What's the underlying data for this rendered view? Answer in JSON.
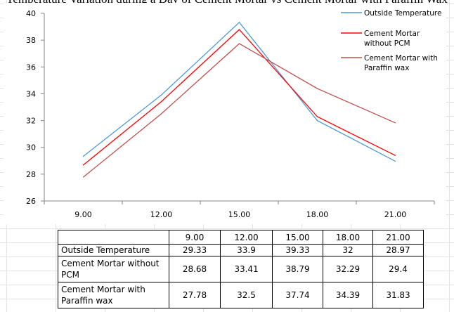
{
  "page": {
    "partial_title": "Temperature Variation during a Day of Cement Mortar vs Cement Mortar with Paraffin Wax"
  },
  "chart_data": {
    "type": "line",
    "x": [
      "9.00",
      "12.00",
      "15.00",
      "18.00",
      "21.00"
    ],
    "series": [
      {
        "name": "Outside Temperature",
        "values": [
          29.33,
          33.9,
          39.33,
          32,
          28.97
        ],
        "color": "#4a9ad6"
      },
      {
        "name": "Cement Mortar without PCM",
        "values": [
          28.68,
          33.41,
          38.79,
          32.29,
          29.4
        ],
        "color": "#ff0000"
      },
      {
        "name": "Cement Mortar with Paraffin wax",
        "values": [
          27.78,
          32.5,
          37.74,
          34.39,
          31.83
        ],
        "color": "#c0504d"
      }
    ],
    "ylim": [
      26,
      40
    ],
    "yticks": [
      "26",
      "28",
      "30",
      "32",
      "34",
      "36",
      "38",
      "40"
    ],
    "legend": {
      "placement": "top-right",
      "entries": [
        [
          "Outside Temperature"
        ],
        [
          "Cement Mortar",
          "without PCM"
        ],
        [
          "Cement Mortar with",
          "Paraffin wax"
        ]
      ]
    },
    "grid": false
  },
  "table": {
    "header": [
      "",
      "9.00",
      "12.00",
      "15.00",
      "18.00",
      "21.00"
    ],
    "rows": [
      {
        "label": [
          "Outside Temperature"
        ],
        "values": [
          "29.33",
          "33.9",
          "39.33",
          "32",
          "28.97"
        ]
      },
      {
        "label": [
          "Cement Mortar without",
          "PCM"
        ],
        "values": [
          "28.68",
          "33.41",
          "38.79",
          "32.29",
          "29.4"
        ]
      },
      {
        "label": [
          "Cement Mortar with",
          "Paraffin wax"
        ],
        "values": [
          "27.78",
          "32.5",
          "37.74",
          "34.39",
          "31.83"
        ]
      }
    ]
  }
}
